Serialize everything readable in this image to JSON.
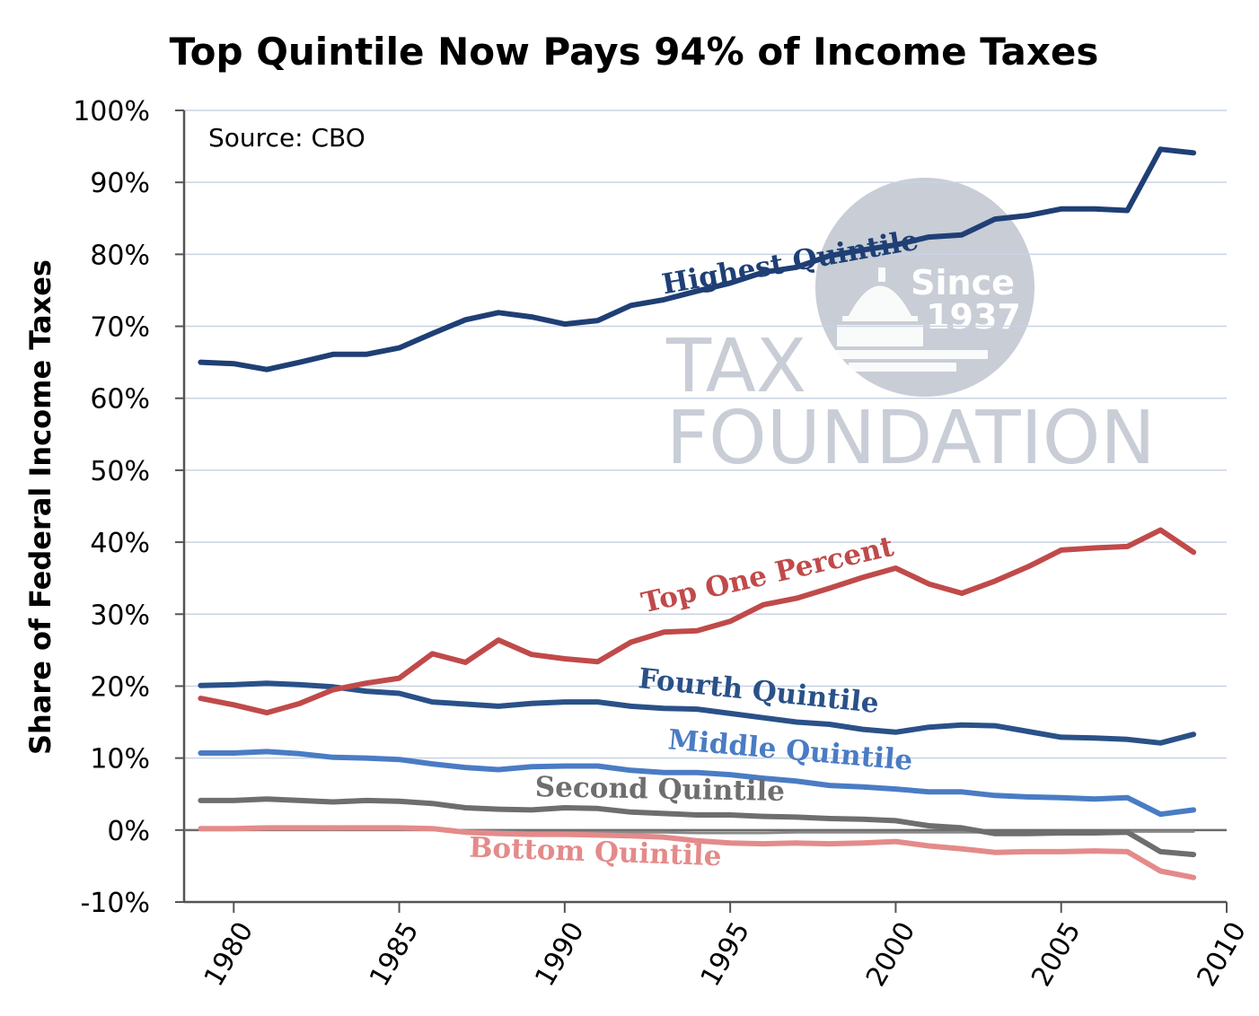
{
  "chart_data": {
    "type": "line",
    "title": "Top Quintile Now Pays 94% of Income Taxes",
    "xlabel": "",
    "ylabel": "Share of Federal Income Taxes",
    "source_note": "Source: CBO",
    "xlim": [
      1978.5,
      2010
    ],
    "ylim": [
      -10,
      100
    ],
    "ytick_values": [
      -10,
      0,
      10,
      20,
      30,
      40,
      50,
      60,
      70,
      80,
      90,
      100
    ],
    "ytick_labels": [
      "-10%",
      "0%",
      "10%",
      "20%",
      "30%",
      "40%",
      "50%",
      "60%",
      "70%",
      "80%",
      "90%",
      "100%"
    ],
    "xtick_values": [
      1980,
      1985,
      1990,
      1995,
      2000,
      2005,
      2010
    ],
    "xtick_labels": [
      "1980",
      "1985",
      "1990",
      "1995",
      "2000",
      "2005",
      "2010"
    ],
    "x": [
      1979,
      1980,
      1981,
      1982,
      1983,
      1984,
      1985,
      1986,
      1987,
      1988,
      1989,
      1990,
      1991,
      1992,
      1993,
      1994,
      1995,
      1996,
      1997,
      1998,
      1999,
      2000,
      2001,
      2002,
      2003,
      2004,
      2005,
      2006,
      2007,
      2008,
      2009
    ],
    "series": [
      {
        "name": "Highest Quintile",
        "color": "#1f3f75",
        "values": [
          65.0,
          64.8,
          64.0,
          65.0,
          66.1,
          66.1,
          67.0,
          69.0,
          70.9,
          71.9,
          71.3,
          70.3,
          70.8,
          72.9,
          73.7,
          74.9,
          76.0,
          77.5,
          78.2,
          79.8,
          80.6,
          81.3,
          82.4,
          82.7,
          84.9,
          85.4,
          86.3,
          86.3,
          86.1,
          94.6,
          94.1
        ]
      },
      {
        "name": "Top One Percent",
        "color": "#c04a4a",
        "values": [
          18.3,
          17.4,
          16.3,
          17.6,
          19.5,
          20.4,
          21.1,
          24.5,
          23.3,
          26.4,
          24.4,
          23.8,
          23.4,
          26.1,
          27.5,
          27.7,
          29.0,
          31.3,
          32.2,
          33.6,
          35.1,
          36.4,
          34.2,
          32.9,
          34.6,
          36.6,
          38.9,
          39.2,
          39.4,
          41.7,
          38.6
        ]
      },
      {
        "name": "Fourth Quintile",
        "color": "#2a5188",
        "values": [
          20.1,
          20.2,
          20.4,
          20.2,
          19.9,
          19.3,
          19.0,
          17.8,
          17.5,
          17.2,
          17.6,
          17.8,
          17.8,
          17.2,
          16.9,
          16.8,
          16.2,
          15.6,
          15.0,
          14.7,
          14.0,
          13.6,
          14.3,
          14.6,
          14.5,
          13.7,
          12.9,
          12.8,
          12.6,
          12.1,
          13.3
        ]
      },
      {
        "name": "Middle Quintile",
        "color": "#4a7cc4",
        "values": [
          10.7,
          10.7,
          10.9,
          10.6,
          10.1,
          10.0,
          9.8,
          9.2,
          8.7,
          8.4,
          8.8,
          8.9,
          8.9,
          8.3,
          8.0,
          8.0,
          7.7,
          7.2,
          6.8,
          6.2,
          6.0,
          5.7,
          5.3,
          5.3,
          4.8,
          4.6,
          4.5,
          4.3,
          4.5,
          2.2,
          2.8
        ]
      },
      {
        "name": "Second Quintile",
        "color": "#6e6e6e",
        "values": [
          4.1,
          4.1,
          4.3,
          4.1,
          3.9,
          4.1,
          4.0,
          3.7,
          3.1,
          2.9,
          2.8,
          3.1,
          3.0,
          2.5,
          2.3,
          2.1,
          2.1,
          1.9,
          1.8,
          1.6,
          1.5,
          1.3,
          0.6,
          0.3,
          -0.5,
          -0.5,
          -0.4,
          -0.4,
          -0.3,
          -3.0,
          -3.4
        ]
      },
      {
        "name": "Bottom Quintile",
        "color": "#e48a8a",
        "values": [
          0.2,
          0.2,
          0.3,
          0.3,
          0.3,
          0.3,
          0.3,
          0.2,
          -0.3,
          -0.5,
          -0.6,
          -0.6,
          -0.7,
          -0.8,
          -1.0,
          -1.5,
          -1.8,
          -1.9,
          -1.8,
          -1.9,
          -1.8,
          -1.6,
          -2.2,
          -2.6,
          -3.1,
          -3.0,
          -3.0,
          -2.9,
          -3.0,
          -5.7,
          -6.6
        ]
      },
      {
        "name": "Zero line",
        "color": "#888888",
        "legend": false,
        "values": [
          0.1,
          0.1,
          0.2,
          0.2,
          0.1,
          0.2,
          0.2,
          0.1,
          -0.1,
          -0.2,
          -0.3,
          -0.3,
          -0.3,
          -0.3,
          -0.3,
          -0.4,
          -0.4,
          -0.4,
          -0.3,
          -0.3,
          -0.3,
          -0.3,
          -0.3,
          -0.3,
          -0.3,
          -0.3,
          -0.3,
          -0.3,
          -0.2,
          -0.2,
          -0.2
        ]
      }
    ],
    "annotations": [
      "Highest Quintile",
      "Top One Percent",
      "Fourth Quintile",
      "Middle Quintile",
      "Second Quintile",
      "Bottom Quintile"
    ],
    "grid": true,
    "legend": "none (inline series labels)"
  },
  "watermark": {
    "line1": "TAX",
    "line2": "FOUNDATION",
    "since": "Since",
    "year": "1937"
  },
  "colors": {
    "axis": "#555555",
    "grid": "#c9d3e2",
    "negative_tick": "#d9534f",
    "watermark": "#c8cdd6"
  }
}
